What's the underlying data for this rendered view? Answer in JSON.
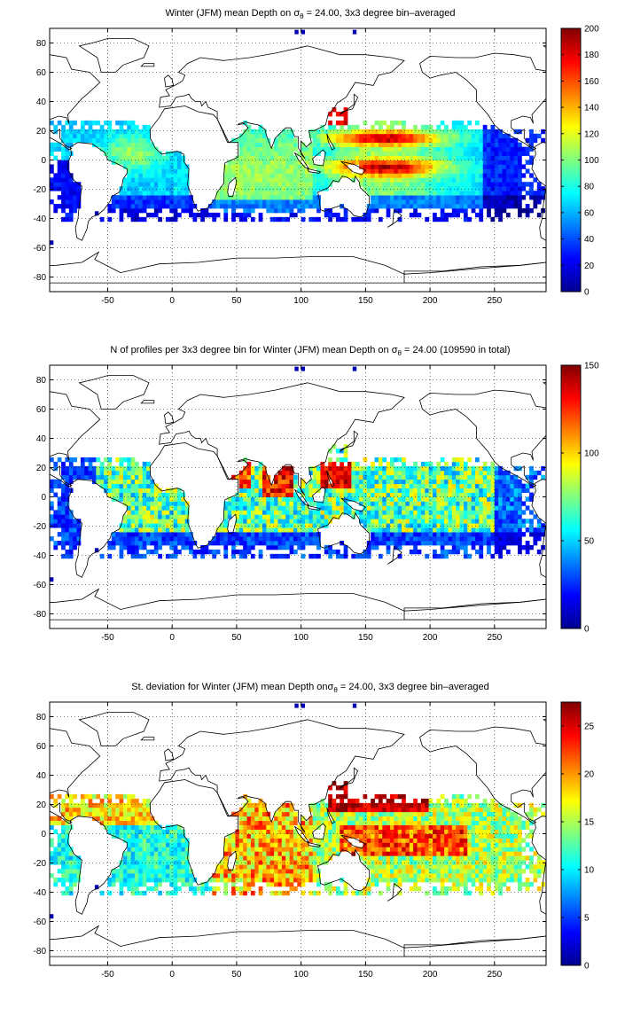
{
  "chart_data": [
    {
      "type": "heatmap",
      "title": "Winter (JFM) mean Depth on σθ = 24.00, 3x3 degree bin–averaged",
      "title_parts": {
        "pre": "Winter (JFM) mean Depth on σ",
        "sub": "θ",
        "post": " = 24.00, 3x3 degree bin–averaged"
      },
      "xlim": [
        -95,
        290
      ],
      "ylim": [
        -90,
        90
      ],
      "x_ticks": [
        -50,
        0,
        50,
        100,
        150,
        200,
        250
      ],
      "y_ticks": [
        -80,
        -60,
        -40,
        -20,
        0,
        20,
        40,
        60,
        80
      ],
      "x_tick_labels": [
        "-50",
        "0",
        "50",
        "100",
        "150",
        "200",
        "250"
      ],
      "y_tick_labels": [
        "-80",
        "-60",
        "-40",
        "-20",
        "0",
        "20",
        "40",
        "60",
        "80"
      ],
      "grid": "dotted",
      "colormap": "jet",
      "clim": [
        0,
        200
      ],
      "colorbar_ticks": [
        0,
        20,
        40,
        60,
        80,
        100,
        120,
        140,
        160,
        180,
        200
      ],
      "colorbar_tick_labels": [
        "0",
        "20",
        "40",
        "60",
        "80",
        "100",
        "120",
        "140",
        "160",
        "180",
        "200"
      ]
    },
    {
      "type": "heatmap",
      "title": "N of profiles per 3x3 degree bin for Winter (JFM) mean Depth on σθ = 24.00 (109590 in total)",
      "title_parts": {
        "pre": "N of profiles per 3x3 degree bin for Winter (JFM) mean Depth on σ",
        "sub": "θ",
        "post": " = 24.00 (109590 in total)"
      },
      "xlim": [
        -95,
        290
      ],
      "ylim": [
        -90,
        90
      ],
      "x_ticks": [
        -50,
        0,
        50,
        100,
        150,
        200,
        250
      ],
      "y_ticks": [
        -80,
        -60,
        -40,
        -20,
        0,
        20,
        40,
        60,
        80
      ],
      "x_tick_labels": [
        "-50",
        "0",
        "50",
        "100",
        "150",
        "200",
        "250"
      ],
      "y_tick_labels": [
        "-80",
        "-60",
        "-40",
        "-20",
        "0",
        "20",
        "40",
        "60",
        "80"
      ],
      "grid": "dotted",
      "colormap": "jet",
      "clim": [
        0,
        150
      ],
      "colorbar_ticks": [
        0,
        50,
        100,
        150
      ],
      "colorbar_tick_labels": [
        "0",
        "50",
        "100",
        "150"
      ]
    },
    {
      "type": "heatmap",
      "title": "St. deviation for Winter (JFM) mean Depth onσθ = 24.00, 3x3 degree bin–averaged",
      "title_parts": {
        "pre": "St. deviation for Winter (JFM) mean Depth onσ",
        "sub": "θ",
        "post": " = 24.00, 3x3 degree bin–averaged"
      },
      "xlim": [
        -95,
        290
      ],
      "ylim": [
        -90,
        90
      ],
      "x_ticks": [
        -50,
        0,
        50,
        100,
        150,
        200,
        250
      ],
      "y_ticks": [
        -80,
        -60,
        -40,
        -20,
        0,
        20,
        40,
        60,
        80
      ],
      "x_tick_labels": [
        "-50",
        "0",
        "50",
        "100",
        "150",
        "200",
        "250"
      ],
      "y_tick_labels": [
        "-80",
        "-60",
        "-40",
        "-20",
        "0",
        "20",
        "40",
        "60",
        "80"
      ],
      "grid": "dotted",
      "colormap": "jet",
      "clim": [
        0,
        27.5
      ],
      "colorbar_ticks": [
        0,
        5,
        10,
        15,
        20,
        25
      ],
      "colorbar_tick_labels": [
        "0",
        "5",
        "10",
        "15",
        "20",
        "25"
      ]
    }
  ]
}
